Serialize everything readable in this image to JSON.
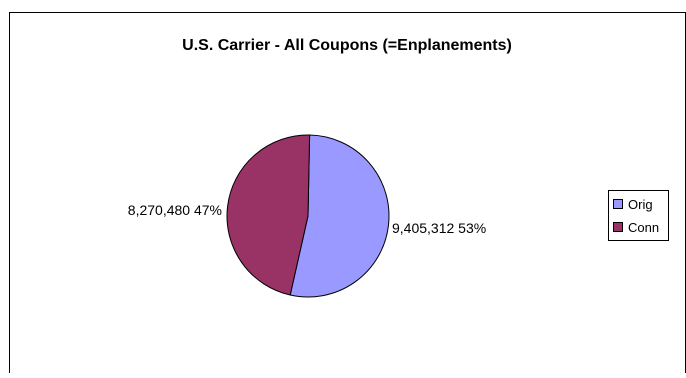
{
  "chart_data": {
    "type": "pie",
    "title": "U.S. Carrier - All Coupons (=Enplanements)",
    "legend_position": "right",
    "slices": [
      {
        "name": "Orig",
        "value": 9405312,
        "percent": 53,
        "color": "#9999FF",
        "label": "9,405,312 53%"
      },
      {
        "name": "Conn",
        "value": 8270480,
        "percent": 47,
        "color": "#993366",
        "label": "8,270,480 47%"
      }
    ]
  }
}
